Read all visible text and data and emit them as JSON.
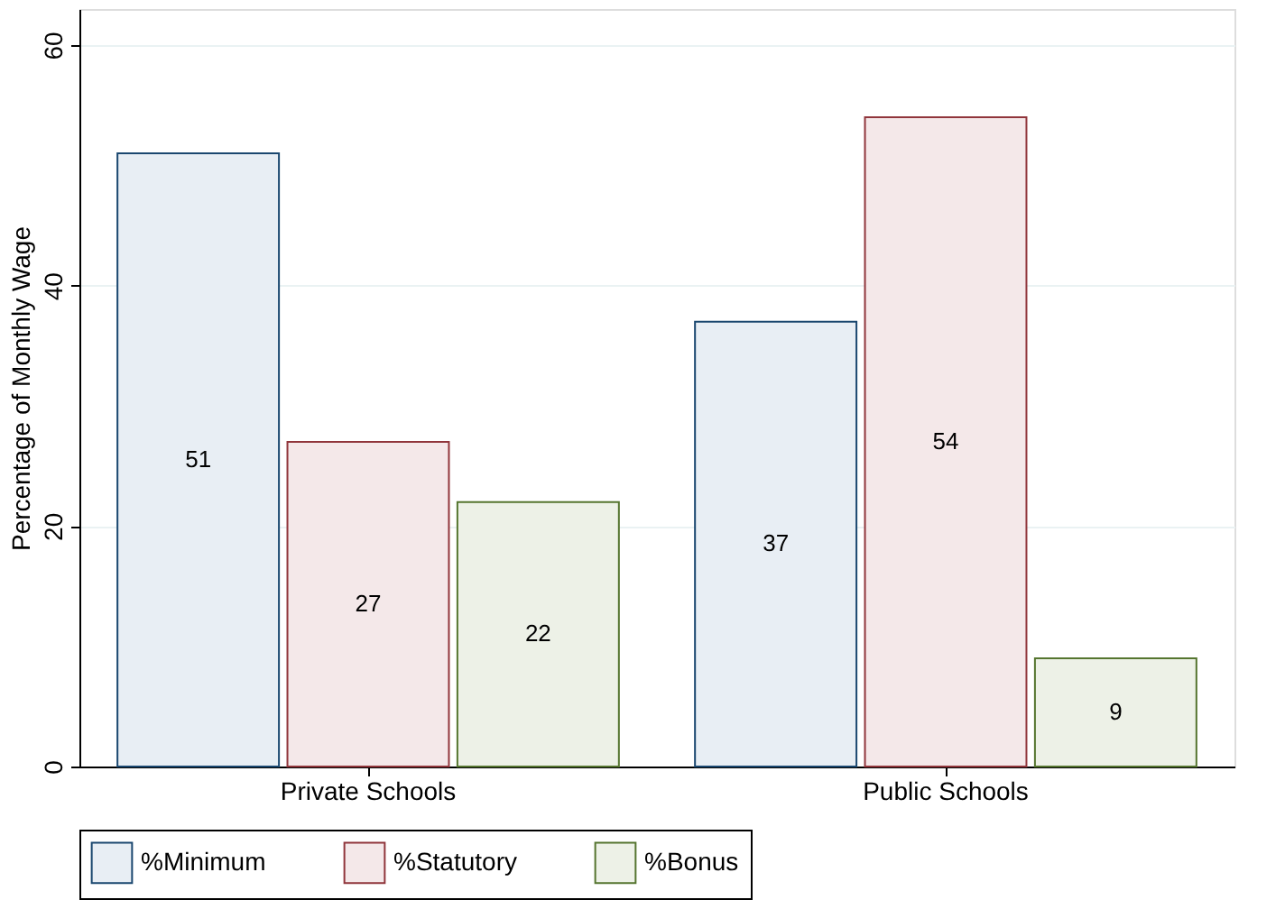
{
  "chart_data": {
    "type": "bar",
    "ylabel": "Percentage of Monthly Wage",
    "categories": [
      "Private Schools",
      "Public Schools"
    ],
    "series": [
      {
        "name": "%Minimum",
        "color": "#e8eef4",
        "values": [
          51,
          37
        ]
      },
      {
        "name": "%Statutory",
        "color": "#f4e8e9",
        "values": [
          27,
          54
        ]
      },
      {
        "name": "%Bonus",
        "color": "#edf1e7",
        "values": [
          22,
          9
        ]
      }
    ],
    "ylim": [
      0,
      63
    ],
    "yticks": [
      0,
      20,
      40,
      60
    ],
    "grid": "y",
    "legend": "bottom",
    "data_labels": true
  }
}
